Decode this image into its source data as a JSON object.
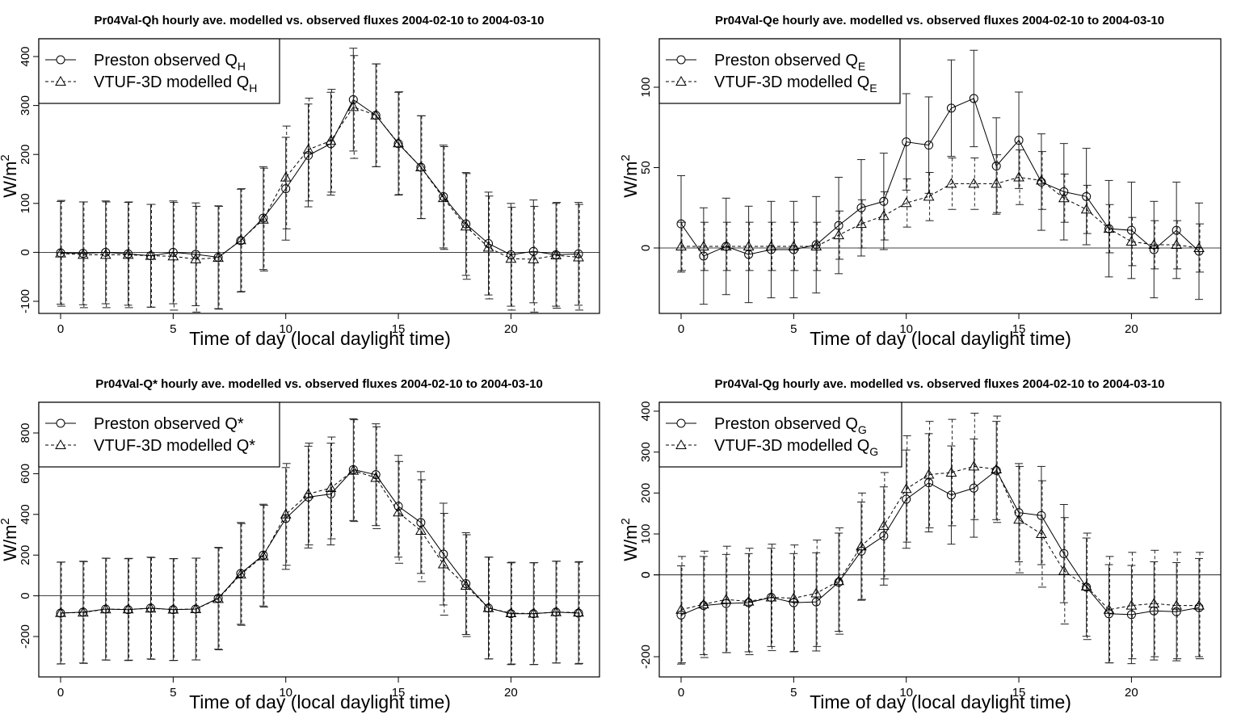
{
  "chart_data": [
    {
      "type": "line",
      "title": "Pr04Val-Qh hourly ave. modelled vs. observed fluxes 2004-02-10 to 2004-03-10",
      "xlabel": "Time of day (local daylight time)",
      "ylabel": "W/m",
      "ylabel_sup": "2",
      "xticks": [
        0,
        5,
        10,
        15,
        20
      ],
      "yticks": [
        -100,
        0,
        100,
        200,
        300,
        400
      ],
      "xlim": [
        -1,
        23.5
      ],
      "ylim": [
        -140,
        430
      ],
      "legend_position": "top-left",
      "x": [
        0,
        1,
        2,
        3,
        4,
        5,
        6,
        7,
        8,
        9,
        10,
        11,
        12,
        13,
        14,
        15,
        16,
        17,
        18,
        19,
        20,
        21,
        22,
        23
      ],
      "series": [
        {
          "name": "Preston observed Q",
          "name_sub": "H",
          "marker": "circle",
          "dash": "solid",
          "values": [
            -1,
            -2,
            0,
            -3,
            -7,
            0,
            -4,
            -10,
            24,
            70,
            130,
            198,
            222,
            312,
            280,
            222,
            174,
            114,
            58,
            18,
            -5,
            2,
            -5,
            -3
          ],
          "err": [
            105,
            105,
            105,
            105,
            105,
            105,
            105,
            105,
            105,
            105,
            105,
            105,
            105,
            105,
            105,
            105,
            105,
            105,
            105,
            105,
            105,
            105,
            105,
            105
          ]
        },
        {
          "name": "VTUF-3D modelled Q",
          "name_sub": "H",
          "marker": "triangle",
          "dash": "dashed",
          "values": [
            -2,
            -5,
            -5,
            -5,
            -7,
            -8,
            -14,
            -11,
            25,
            67,
            153,
            210,
            228,
            297,
            280,
            223,
            174,
            111,
            53,
            10,
            -13,
            -14,
            -6,
            -10
          ],
          "err": [
            108,
            108,
            108,
            108,
            105,
            110,
            108,
            105,
            105,
            105,
            105,
            105,
            105,
            105,
            105,
            105,
            105,
            105,
            108,
            105,
            105,
            108,
            108,
            108
          ]
        }
      ]
    },
    {
      "type": "line",
      "title": "Pr04Val-Qe hourly ave. modelled vs. observed fluxes 2004-02-10 to 2004-03-10",
      "xlabel": "Time of day (local daylight time)",
      "ylabel": "W/m",
      "ylabel_sup": "2",
      "xticks": [
        0,
        5,
        10,
        15,
        20
      ],
      "yticks": [
        0,
        50,
        100
      ],
      "xlim": [
        -1,
        23.5
      ],
      "ylim": [
        -42,
        130
      ],
      "legend_position": "top-left",
      "x": [
        0,
        1,
        2,
        3,
        4,
        5,
        6,
        7,
        8,
        9,
        10,
        11,
        12,
        13,
        14,
        15,
        16,
        17,
        18,
        19,
        20,
        21,
        22,
        23
      ],
      "series": [
        {
          "name": "Preston observed Q",
          "name_sub": "E",
          "marker": "circle",
          "dash": "solid",
          "values": [
            15,
            -5,
            1,
            -4,
            -1,
            -1,
            2,
            14,
            25,
            29,
            66,
            64,
            87,
            93,
            51,
            67,
            41,
            35,
            32,
            12,
            11,
            -1,
            11,
            -2
          ],
          "err": [
            30,
            30,
            30,
            30,
            30,
            30,
            30,
            30,
            30,
            30,
            30,
            30,
            30,
            30,
            30,
            30,
            30,
            30,
            30,
            30,
            30,
            30,
            30,
            30
          ]
        },
        {
          "name": "VTUF-3D modelled Q",
          "name_sub": "E",
          "marker": "triangle",
          "dash": "dashed",
          "values": [
            1,
            1,
            1,
            1,
            1,
            1,
            1,
            8,
            15,
            20,
            28,
            32,
            40,
            40,
            40,
            44,
            42,
            31,
            24,
            12,
            4,
            2,
            2,
            0
          ],
          "err": [
            15,
            15,
            15,
            15,
            15,
            15,
            15,
            15,
            15,
            15,
            15,
            15,
            16,
            16,
            18,
            17,
            18,
            15,
            15,
            15,
            15,
            15,
            15,
            15
          ]
        }
      ]
    },
    {
      "type": "line",
      "title": "Pr04Val-Q* hourly ave. modelled vs. observed fluxes 2004-02-10 to 2004-03-10",
      "xlabel": "Time of day (local daylight time)",
      "ylabel": "W/m",
      "ylabel_sup": "2",
      "xticks": [
        0,
        5,
        10,
        15,
        20
      ],
      "yticks": [
        -200,
        0,
        200,
        400,
        600,
        800
      ],
      "xlim": [
        -1,
        23.5
      ],
      "ylim": [
        -395,
        935
      ],
      "legend_position": "top-left",
      "x": [
        0,
        1,
        2,
        3,
        4,
        5,
        6,
        7,
        8,
        9,
        10,
        11,
        12,
        13,
        14,
        15,
        16,
        17,
        18,
        19,
        20,
        21,
        22,
        23
      ],
      "series": [
        {
          "name": "Preston observed Q*",
          "name_sub": "",
          "marker": "circle",
          "dash": "solid",
          "values": [
            -85,
            -80,
            -65,
            -68,
            -60,
            -68,
            -65,
            -12,
            110,
            200,
            380,
            485,
            500,
            620,
            595,
            440,
            360,
            205,
            60,
            -60,
            -88,
            -88,
            -80,
            -85
          ],
          "err": [
            250,
            250,
            250,
            250,
            250,
            250,
            250,
            250,
            250,
            250,
            250,
            250,
            250,
            250,
            250,
            250,
            250,
            250,
            250,
            250,
            250,
            250,
            250,
            250
          ]
        },
        {
          "name": "VTUF-3D modelled Q*",
          "name_sub": "",
          "marker": "triangle",
          "dash": "dashed",
          "values": [
            -84,
            -82,
            -66,
            -66,
            -62,
            -67,
            -65,
            -15,
            105,
            195,
            400,
            500,
            530,
            615,
            580,
            410,
            320,
            155,
            50,
            -60,
            -85,
            -87,
            -80,
            -82
          ],
          "err": [
            250,
            250,
            250,
            250,
            250,
            250,
            250,
            250,
            250,
            250,
            250,
            250,
            250,
            250,
            250,
            250,
            250,
            250,
            250,
            250,
            250,
            250,
            250,
            250
          ]
        }
      ]
    },
    {
      "type": "line",
      "title": "Pr04Val-Qg hourly ave. modelled vs. observed fluxes 2004-02-10 to 2004-03-10",
      "xlabel": "Time of day (local daylight time)",
      "ylabel": "W/m",
      "ylabel_sup": "2",
      "xticks": [
        0,
        5,
        10,
        15,
        20
      ],
      "yticks": [
        -200,
        100,
        200,
        300,
        400
      ],
      "ytick_zero_label": "0",
      "xlim": [
        -1,
        23.5
      ],
      "ylim": [
        -250,
        420
      ],
      "legend_position": "top-left",
      "x": [
        0,
        1,
        2,
        3,
        4,
        5,
        6,
        7,
        8,
        9,
        10,
        11,
        12,
        13,
        14,
        15,
        16,
        17,
        18,
        19,
        20,
        21,
        22,
        23
      ],
      "series": [
        {
          "name": "Preston observed Q",
          "name_sub": "G",
          "marker": "circle",
          "dash": "solid",
          "values": [
            -98,
            -75,
            -70,
            -68,
            -55,
            -68,
            -66,
            -18,
            58,
            95,
            185,
            225,
            195,
            212,
            255,
            152,
            145,
            52,
            -30,
            -95,
            -97,
            -88,
            -90,
            -80
          ],
          "err": [
            120,
            120,
            120,
            120,
            120,
            120,
            120,
            120,
            120,
            120,
            120,
            120,
            120,
            120,
            120,
            120,
            120,
            120,
            120,
            120,
            120,
            120,
            120,
            120
          ]
        },
        {
          "name": "VTUF-3D modelled Q",
          "name_sub": "G",
          "marker": "triangle",
          "dash": "dashed",
          "values": [
            -85,
            -72,
            -60,
            -65,
            -55,
            -57,
            -45,
            -15,
            70,
            120,
            210,
            245,
            250,
            265,
            258,
            135,
            100,
            10,
            -28,
            -85,
            -75,
            -70,
            -75,
            -75
          ],
          "err": [
            130,
            130,
            130,
            130,
            130,
            130,
            130,
            130,
            130,
            130,
            130,
            130,
            130,
            130,
            130,
            130,
            130,
            130,
            130,
            130,
            130,
            130,
            130,
            130
          ]
        }
      ]
    }
  ]
}
